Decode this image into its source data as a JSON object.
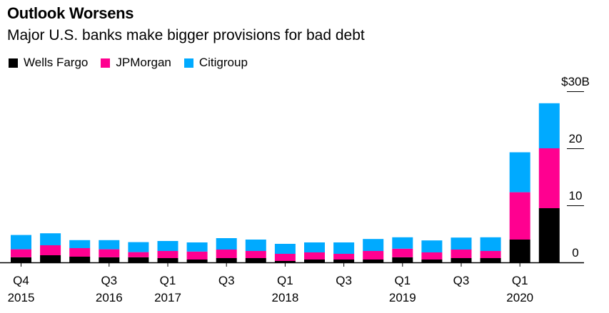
{
  "header": {
    "title": "Outlook Worsens",
    "subtitle": "Major U.S. banks make bigger provisions for bad debt"
  },
  "chart_data": {
    "type": "bar",
    "stacked": true,
    "title": "Outlook Worsens",
    "subtitle": "Major U.S. banks make bigger provisions for bad debt",
    "xlabel": "",
    "ylabel": "",
    "ylim": [
      0,
      30
    ],
    "y_ticks": [
      {
        "value": 0,
        "label": "0"
      },
      {
        "value": 10,
        "label": "10"
      },
      {
        "value": 20,
        "label": "20"
      },
      {
        "value": 30,
        "label": "$30B"
      }
    ],
    "y_axis_position": "right",
    "legend_position": "top-left",
    "categories": [
      "Q4 2015",
      "Q1 2016",
      "Q2 2016",
      "Q3 2016",
      "Q4 2016",
      "Q1 2017",
      "Q2 2017",
      "Q3 2017",
      "Q4 2017",
      "Q1 2018",
      "Q2 2018",
      "Q3 2018",
      "Q4 2018",
      "Q1 2019",
      "Q2 2019",
      "Q3 2019",
      "Q4 2019",
      "Q1 2020",
      "Q2 2020"
    ],
    "x_tick_labels": [
      {
        "index": 0,
        "line1": "Q4",
        "line2": "2015"
      },
      {
        "index": 3,
        "line1": "Q3",
        "line2": "2016"
      },
      {
        "index": 5,
        "line1": "Q1",
        "line2": "2017"
      },
      {
        "index": 7,
        "line1": "Q3",
        "line2": ""
      },
      {
        "index": 9,
        "line1": "Q1",
        "line2": "2018"
      },
      {
        "index": 11,
        "line1": "Q3",
        "line2": ""
      },
      {
        "index": 13,
        "line1": "Q1",
        "line2": "2019"
      },
      {
        "index": 15,
        "line1": "Q3",
        "line2": ""
      },
      {
        "index": 17,
        "line1": "Q1",
        "line2": "2020"
      }
    ],
    "series": [
      {
        "name": "Wells Fargo",
        "color": "#000000",
        "values": [
          0.9,
          1.25,
          1.0,
          0.9,
          0.9,
          0.75,
          0.5,
          0.75,
          0.75,
          0.25,
          0.5,
          0.5,
          0.5,
          0.9,
          0.5,
          0.75,
          0.75,
          4.0,
          9.5
        ]
      },
      {
        "name": "JPMorgan",
        "color": "#ff0090",
        "values": [
          1.4,
          1.75,
          1.5,
          1.4,
          0.9,
          1.25,
          1.4,
          1.5,
          1.25,
          1.25,
          1.25,
          1.0,
          1.5,
          1.5,
          1.25,
          1.5,
          1.25,
          8.3,
          10.5
        ]
      },
      {
        "name": "Citigroup",
        "color": "#00aaff",
        "values": [
          2.5,
          2.1,
          1.4,
          1.6,
          1.75,
          1.75,
          1.6,
          2.0,
          2.0,
          1.75,
          1.75,
          2.0,
          2.1,
          2.0,
          2.1,
          2.1,
          2.4,
          7.0,
          7.9
        ]
      }
    ]
  }
}
